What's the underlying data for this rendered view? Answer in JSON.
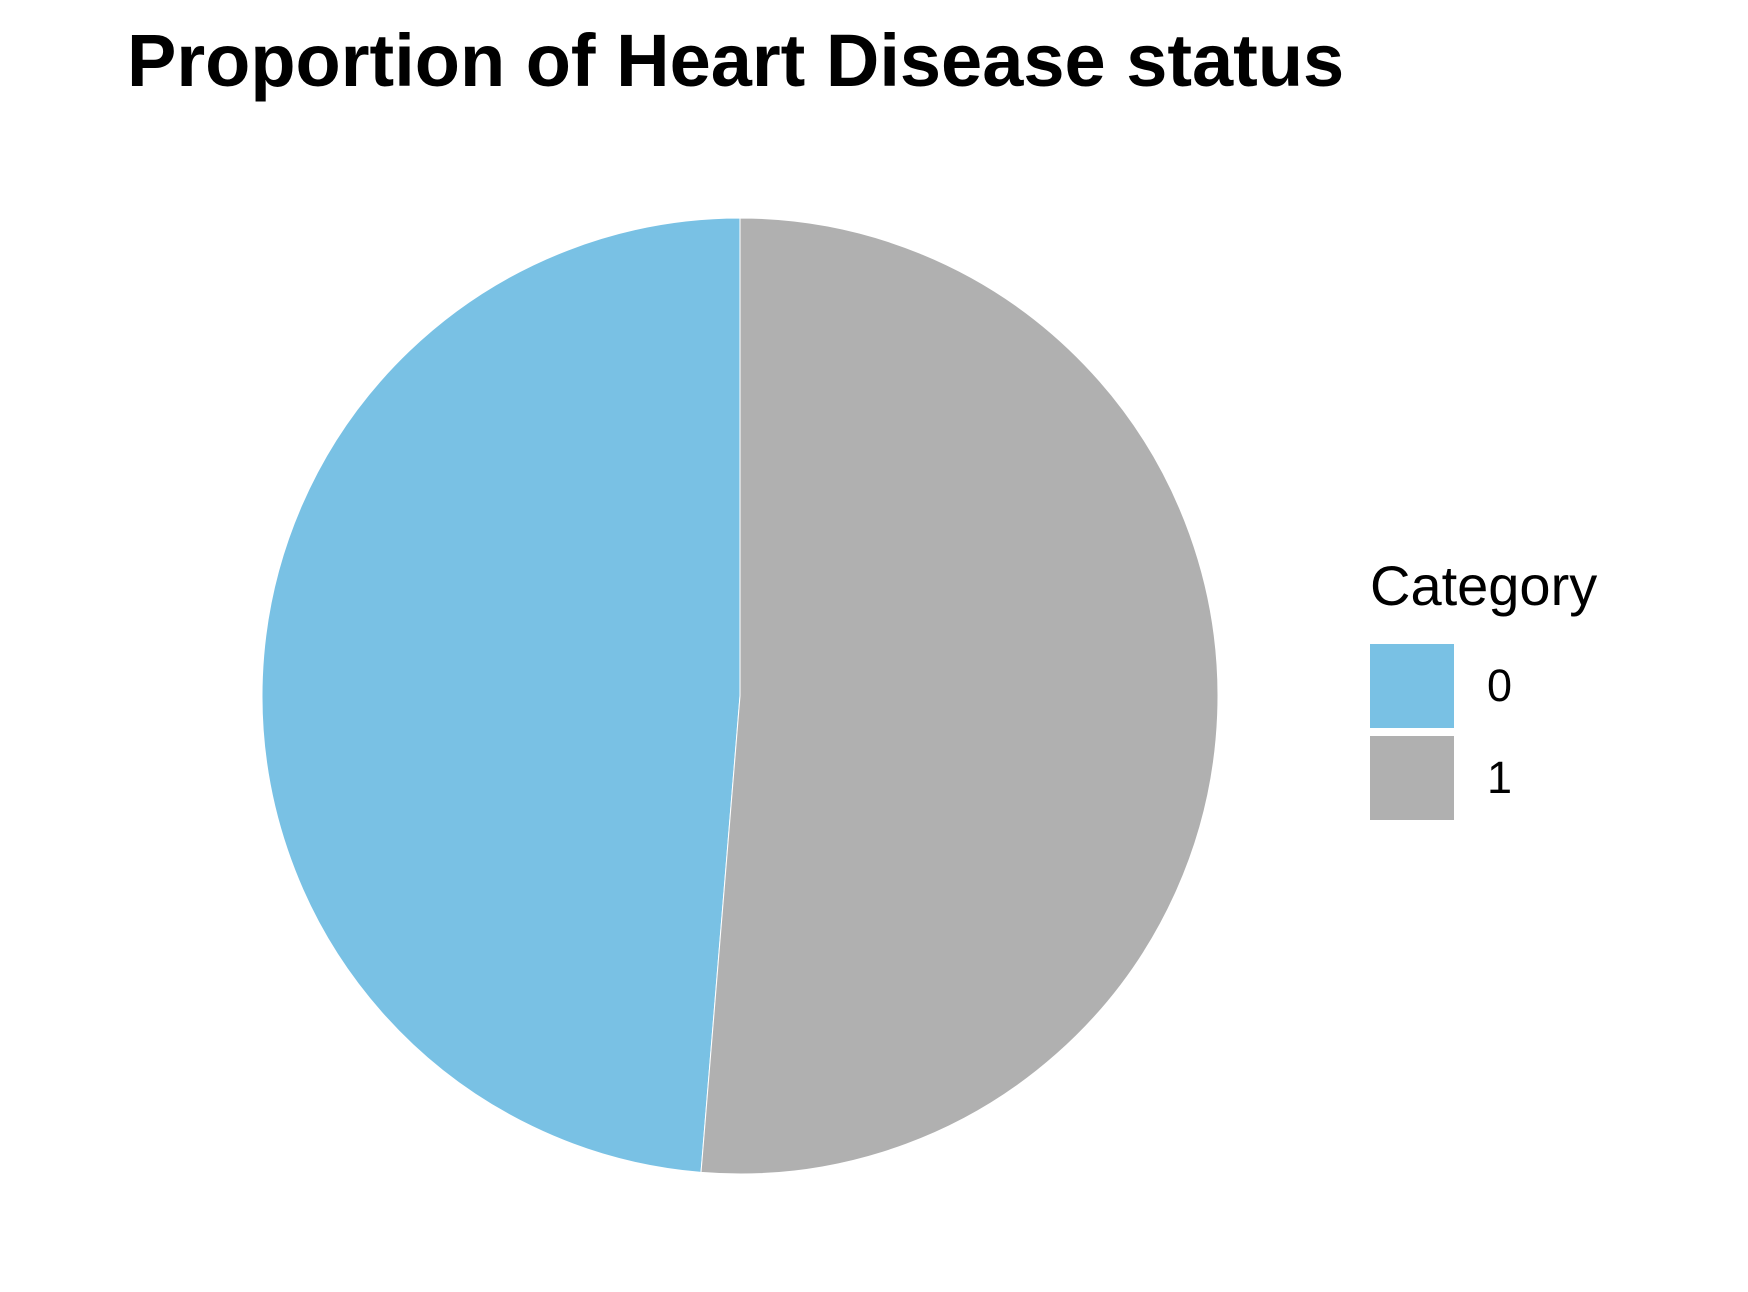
{
  "chart_data": {
    "type": "pie",
    "title": "Proportion of Heart Disease status",
    "legend_title": "Category",
    "legend_position": "right",
    "slices": [
      {
        "label": "0",
        "value": 0.487,
        "color": "#79C1E4"
      },
      {
        "label": "1",
        "value": 0.513,
        "color": "#B0B0B0"
      }
    ]
  }
}
